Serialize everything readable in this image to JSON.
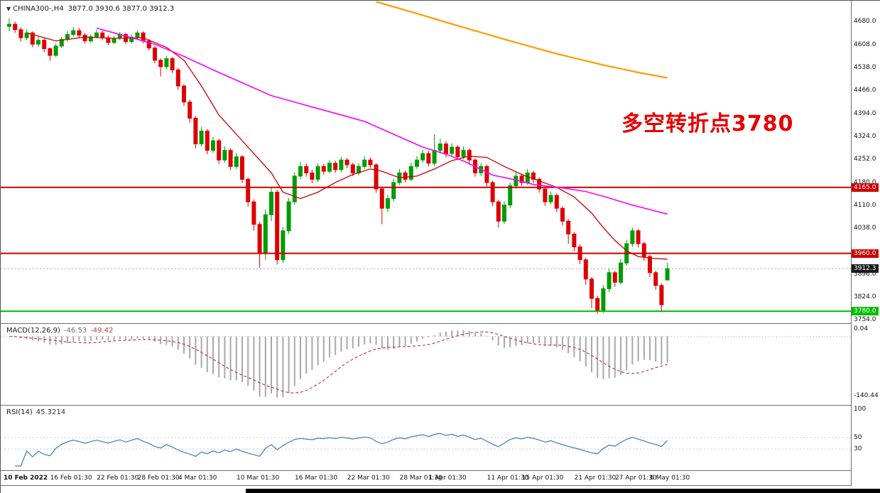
{
  "header": {
    "arrow_icon": "▼",
    "symbol": "CHINA300-,H4",
    "ohlc": "3877.0 3930.6 3877.0 3912.3"
  },
  "annotation": {
    "text": "多空转折点3780",
    "color": "#e60000"
  },
  "colors": {
    "bull": "#009c00",
    "bear": "#dd0000",
    "ma_red": "#cc0000",
    "ma_magenta": "#ff00ff",
    "ma_orange": "#ff9c00",
    "level_red": "#cc0000",
    "level_green": "#00bf00",
    "bid_line": "#aaaaaa",
    "bid_label_bg": "#1a1a1a",
    "macd_hist": "#a8a8a8",
    "macd_signal": "#c04040",
    "rsi_line": "#3e7bbf"
  },
  "chart_data": {
    "type": "candlestick",
    "symbol": "CHINA300-",
    "timeframe": "H4",
    "title": "CHINA300- H4 candlestick chart with MACD and RSI",
    "price_axis": {
      "min": 3745,
      "max": 4745,
      "ticks": [
        4680.0,
        4608.0,
        4538.0,
        4466.0,
        4394.0,
        4324.0,
        4252.0,
        4180.0,
        4110.0,
        4038.0,
        3896.0,
        3824.0,
        3754.0
      ]
    },
    "levels": [
      {
        "price": 4165.0,
        "label": "4165.0",
        "color": "#cc0000",
        "width": 2
      },
      {
        "price": 3960.0,
        "label": "3960.0",
        "color": "#cc0000",
        "width": 2
      },
      {
        "price": 3780.0,
        "label": "3780.0",
        "color": "#00bf00",
        "width": 2
      }
    ],
    "bid": {
      "price": 3912.3,
      "label": "3912.3"
    },
    "candles": [
      [
        4665,
        4690,
        4650,
        4672
      ],
      [
        4672,
        4680,
        4645,
        4655
      ],
      [
        4655,
        4662,
        4618,
        4630
      ],
      [
        4630,
        4656,
        4622,
        4645
      ],
      [
        4645,
        4650,
        4600,
        4610
      ],
      [
        4610,
        4634,
        4602,
        4622
      ],
      [
        4622,
        4628,
        4585,
        4596
      ],
      [
        4596,
        4600,
        4558,
        4575
      ],
      [
        4575,
        4612,
        4570,
        4604
      ],
      [
        4604,
        4632,
        4598,
        4625
      ],
      [
        4625,
        4650,
        4618,
        4640
      ],
      [
        4640,
        4663,
        4634,
        4652
      ],
      [
        4652,
        4660,
        4630,
        4638
      ],
      [
        4638,
        4645,
        4612,
        4620
      ],
      [
        4620,
        4642,
        4615,
        4633
      ],
      [
        4633,
        4655,
        4628,
        4645
      ],
      [
        4645,
        4652,
        4622,
        4630
      ],
      [
        4630,
        4638,
        4606,
        4615
      ],
      [
        4615,
        4636,
        4610,
        4628
      ],
      [
        4628,
        4648,
        4622,
        4640
      ],
      [
        4640,
        4645,
        4610,
        4618
      ],
      [
        4618,
        4640,
        4612,
        4632
      ],
      [
        4632,
        4653,
        4626,
        4645
      ],
      [
        4645,
        4650,
        4612,
        4620
      ],
      [
        4620,
        4626,
        4590,
        4598
      ],
      [
        4598,
        4604,
        4550,
        4560
      ],
      [
        4560,
        4566,
        4510,
        4540
      ],
      [
        4540,
        4574,
        4532,
        4565
      ],
      [
        4565,
        4570,
        4520,
        4530
      ],
      [
        4530,
        4536,
        4468,
        4480
      ],
      [
        4480,
        4486,
        4418,
        4430
      ],
      [
        4430,
        4438,
        4366,
        4380
      ],
      [
        4380,
        4386,
        4286,
        4300
      ],
      [
        4300,
        4352,
        4292,
        4340
      ],
      [
        4340,
        4346,
        4268,
        4280
      ],
      [
        4280,
        4322,
        4272,
        4310
      ],
      [
        4310,
        4316,
        4238,
        4250
      ],
      [
        4250,
        4292,
        4242,
        4280
      ],
      [
        4280,
        4286,
        4218,
        4230
      ],
      [
        4230,
        4272,
        4222,
        4260
      ],
      [
        4260,
        4266,
        4178,
        4190
      ],
      [
        4190,
        4196,
        4106,
        4120
      ],
      [
        4120,
        4128,
        4030,
        4050
      ],
      [
        4050,
        4058,
        3915,
        3960
      ],
      [
        3960,
        4096,
        3940,
        4080
      ],
      [
        4080,
        4165,
        4060,
        4150
      ],
      [
        4150,
        4158,
        3925,
        3940
      ],
      [
        3940,
        4042,
        3930,
        4030
      ],
      [
        4030,
        4132,
        4020,
        4120
      ],
      [
        4120,
        4212,
        4110,
        4200
      ],
      [
        4200,
        4244,
        4190,
        4230
      ],
      [
        4230,
        4240,
        4198,
        4210
      ],
      [
        4210,
        4220,
        4178,
        4190
      ],
      [
        4190,
        4240,
        4182,
        4230
      ],
      [
        4230,
        4238,
        4205,
        4215
      ],
      [
        4215,
        4250,
        4208,
        4240
      ],
      [
        4240,
        4248,
        4210,
        4220
      ],
      [
        4220,
        4260,
        4212,
        4250
      ],
      [
        4250,
        4256,
        4224,
        4235
      ],
      [
        4235,
        4242,
        4200,
        4210
      ],
      [
        4210,
        4240,
        4202,
        4230
      ],
      [
        4230,
        4262,
        4222,
        4250
      ],
      [
        4250,
        4258,
        4226,
        4235
      ],
      [
        4235,
        4240,
        4148,
        4160
      ],
      [
        4160,
        4166,
        4050,
        4100
      ],
      [
        4100,
        4142,
        4088,
        4130
      ],
      [
        4130,
        4192,
        4122,
        4180
      ],
      [
        4180,
        4222,
        4172,
        4210
      ],
      [
        4210,
        4218,
        4180,
        4190
      ],
      [
        4190,
        4242,
        4184,
        4230
      ],
      [
        4230,
        4262,
        4222,
        4250
      ],
      [
        4250,
        4282,
        4242,
        4270
      ],
      [
        4270,
        4278,
        4230,
        4240
      ],
      [
        4240,
        4330,
        4232,
        4280
      ],
      [
        4280,
        4316,
        4270,
        4300
      ],
      [
        4300,
        4308,
        4258,
        4270
      ],
      [
        4270,
        4302,
        4262,
        4290
      ],
      [
        4290,
        4296,
        4250,
        4260
      ],
      [
        4260,
        4292,
        4252,
        4280
      ],
      [
        4280,
        4286,
        4240,
        4250
      ],
      [
        4250,
        4256,
        4198,
        4210
      ],
      [
        4210,
        4240,
        4200,
        4230
      ],
      [
        4230,
        4236,
        4168,
        4180
      ],
      [
        4180,
        4186,
        4106,
        4120
      ],
      [
        4120,
        4126,
        4040,
        4060
      ],
      [
        4060,
        4122,
        4052,
        4110
      ],
      [
        4110,
        4180,
        4100,
        4170
      ],
      [
        4170,
        4212,
        4162,
        4200
      ],
      [
        4200,
        4208,
        4170,
        4180
      ],
      [
        4180,
        4222,
        4172,
        4210
      ],
      [
        4210,
        4216,
        4178,
        4190
      ],
      [
        4190,
        4196,
        4148,
        4160
      ],
      [
        4160,
        4166,
        4108,
        4120
      ],
      [
        4120,
        4152,
        4112,
        4140
      ],
      [
        4140,
        4146,
        4088,
        4100
      ],
      [
        4100,
        4106,
        4046,
        4060
      ],
      [
        4060,
        4066,
        3990,
        4020
      ],
      [
        4020,
        4026,
        3966,
        3980
      ],
      [
        3980,
        3988,
        3926,
        3940
      ],
      [
        3940,
        3946,
        3862,
        3880
      ],
      [
        3880,
        3886,
        3790,
        3820
      ],
      [
        3820,
        3828,
        3772,
        3780
      ],
      [
        3780,
        3862,
        3775,
        3850
      ],
      [
        3850,
        3912,
        3840,
        3900
      ],
      [
        3900,
        3906,
        3856,
        3870
      ],
      [
        3870,
        3942,
        3862,
        3930
      ],
      [
        3930,
        4002,
        3922,
        3990
      ],
      [
        3990,
        4040,
        3980,
        4030
      ],
      [
        4030,
        4036,
        3978,
        3990
      ],
      [
        3990,
        3996,
        3936,
        3950
      ],
      [
        3950,
        3956,
        3886,
        3900
      ],
      [
        3900,
        3906,
        3846,
        3860
      ],
      [
        3860,
        3866,
        3777,
        3800
      ],
      [
        3877,
        3930.6,
        3877,
        3912.3
      ]
    ],
    "date_ticks": [
      {
        "i": 0,
        "t": "10 Feb 2022"
      },
      {
        "i": 8,
        "t": "16 Feb 01:30"
      },
      {
        "i": 16,
        "t": "22 Feb 01:30"
      },
      {
        "i": 23,
        "t": "28 Feb 01:30"
      },
      {
        "i": 30,
        "t": "4 Mar 01:30"
      },
      {
        "i": 40,
        "t": "10 Mar 01:30"
      },
      {
        "i": 50,
        "t": "16 Mar 01:30"
      },
      {
        "i": 59,
        "t": "22 Mar 01:30"
      },
      {
        "i": 68,
        "t": "28 Mar 01:30"
      },
      {
        "i": 73,
        "t": "1 Apr 01:30"
      },
      {
        "i": 83,
        "t": "11 Apr 01:30"
      },
      {
        "i": 89,
        "t": "15 Apr 01:30"
      },
      {
        "i": 98,
        "t": "21 Apr 01:30"
      },
      {
        "i": 105,
        "t": "27 Apr 01:30"
      },
      {
        "i": 111,
        "t": "6 May 01:30"
      }
    ],
    "ma": {
      "magenta": [
        [
          15,
          4660
        ],
        [
          20,
          4635
        ],
        [
          25,
          4610
        ],
        [
          30,
          4572
        ],
        [
          35,
          4530
        ],
        [
          40,
          4490
        ],
        [
          45,
          4450
        ],
        [
          50,
          4425
        ],
        [
          53,
          4410
        ],
        [
          57,
          4390
        ],
        [
          61,
          4370
        ],
        [
          66,
          4330
        ],
        [
          71,
          4290
        ],
        [
          75,
          4268
        ],
        [
          78,
          4247
        ],
        [
          83,
          4203
        ],
        [
          87,
          4188
        ],
        [
          90,
          4174
        ],
        [
          95,
          4163
        ],
        [
          99,
          4152
        ],
        [
          102,
          4137
        ],
        [
          107,
          4110
        ],
        [
          110,
          4096
        ],
        [
          113,
          4082
        ]
      ],
      "red": [
        [
          3,
          4645
        ],
        [
          8,
          4620
        ],
        [
          13,
          4632
        ],
        [
          18,
          4628
        ],
        [
          23,
          4630
        ],
        [
          27,
          4600
        ],
        [
          30,
          4560
        ],
        [
          33,
          4480
        ],
        [
          36,
          4390
        ],
        [
          39,
          4330
        ],
        [
          42,
          4270
        ],
        [
          45,
          4210
        ],
        [
          47,
          4150
        ],
        [
          50,
          4130
        ],
        [
          53,
          4150
        ],
        [
          56,
          4180
        ],
        [
          59,
          4205
        ],
        [
          62,
          4222
        ],
        [
          64,
          4215
        ],
        [
          67,
          4195
        ],
        [
          70,
          4200
        ],
        [
          73,
          4222
        ],
        [
          76,
          4248
        ],
        [
          79,
          4262
        ],
        [
          82,
          4258
        ],
        [
          85,
          4230
        ],
        [
          88,
          4205
        ],
        [
          91,
          4185
        ],
        [
          94,
          4165
        ],
        [
          97,
          4135
        ],
        [
          100,
          4085
        ],
        [
          102,
          4040
        ],
        [
          104,
          4000
        ],
        [
          106,
          3968
        ],
        [
          108,
          3950
        ],
        [
          110,
          3945
        ],
        [
          113,
          3942
        ]
      ],
      "orange": [
        [
          63,
          4742
        ],
        [
          70,
          4705
        ],
        [
          78,
          4662
        ],
        [
          86,
          4620
        ],
        [
          94,
          4580
        ],
        [
          102,
          4545
        ],
        [
          108,
          4522
        ],
        [
          113,
          4505
        ]
      ]
    },
    "macd": {
      "label": "MACD(12,26,9)",
      "value_main": "-46.53",
      "value_signal": "-49.42",
      "fast": 12,
      "slow": 26,
      "signal": 9,
      "axis_top": "0.04",
      "axis_bottom": "-140.44"
    },
    "rsi": {
      "label": "RSI(14)",
      "value": "45.3214",
      "period": 14,
      "axis_labels": [
        100,
        50,
        30
      ],
      "level_lines": [
        50,
        30
      ]
    }
  }
}
